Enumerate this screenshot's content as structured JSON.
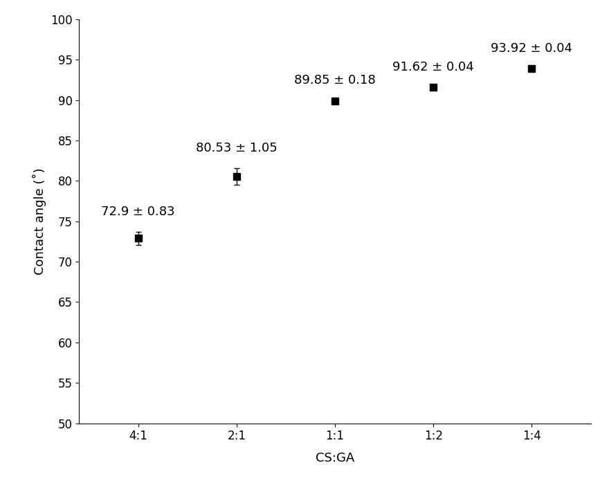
{
  "chart_data": {
    "type": "scatter",
    "x_label": "CS:GA",
    "y_label": "Contact angle (˚)",
    "categories": [
      "4:1",
      "2:1",
      "1:1",
      "1:2",
      "1:4"
    ],
    "values": [
      72.9,
      80.53,
      89.85,
      91.62,
      93.92
    ],
    "errors": [
      0.83,
      1.05,
      0.18,
      0.04,
      0.04
    ],
    "value_labels": [
      "72.9 ± 0.83",
      "80.53 ± 1.05",
      "89.85 ± 0.18",
      "91.62 ± 0.04",
      "93.92 ± 0.04"
    ],
    "data_labels": true,
    "color": "#000000",
    "marker": "square",
    "ylim": [
      50,
      100
    ],
    "yticks": [
      50,
      55,
      60,
      65,
      70,
      75,
      80,
      85,
      90,
      95,
      100
    ],
    "grid": false
  }
}
